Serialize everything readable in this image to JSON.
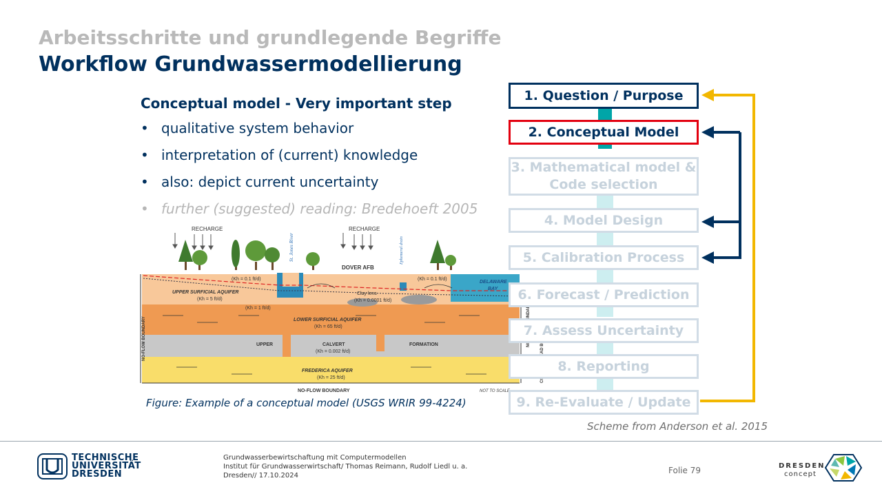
{
  "header": {
    "supertitle": "Arbeitsschritte und grundlegende Begriffe",
    "title": "Workflow Grundwassermodellierung"
  },
  "content": {
    "subheading": "Conceptual model - Very important step",
    "bullets": [
      "qualitative system behavior",
      "interpretation of (current) knowledge",
      "also: depict current uncertainty",
      "further (suggested) reading: Bredehoeft 2005"
    ]
  },
  "figure": {
    "caption": "Figure: Example of a conceptual model (USGS WRIR 99-4224)",
    "labels": {
      "recharge_left": "RECHARGE",
      "recharge_right": "RECHARGE",
      "st_jones_river": "St. Jones River",
      "ephemeral_drain": "Ephemeral drain",
      "dover_afb": "DOVER AFB",
      "delaware_bay": "DELAWARE",
      "delaware_bay2": "BAY",
      "kh1": "(Kh = 0.1 ft/d)",
      "kh2": "(Kh = 0.1 ft/d)",
      "upper_surficial": "UPPER SURFICIAL AQUIFER",
      "kh5": "(Kh = 5 ft/d)",
      "clay_lens": "Clay lens",
      "kh0001": "(Kh = 0.0001 ft/d)",
      "kh_1": "(Kh = 1 ft/d)",
      "lower_surficial": "LOWER SURFICIAL AQUIFER",
      "kh65": "(Kh = 65 ft/d)",
      "upper": "UPPER",
      "calvert": "CALVERT",
      "formation": "FORMATION",
      "kh0002": "(Kh = 0.002 ft/d)",
      "frederica": "FREDERICA      AQUIFER",
      "kh25": "(Kh = 25 ft/d)",
      "no_flow_bottom": "NO-FLOW BOUNDARY",
      "not_to_scale": "NOT TO SCALE",
      "no_flow_left": "NO-FLOW BOUNDARY",
      "no_flow_right": "NO-FLOW BOUNDARY",
      "constant_head": "CONSTANT-HEAD BOUNDARY"
    }
  },
  "workflow": {
    "steps": [
      {
        "label": "1. Question  / Purpose",
        "state": "active"
      },
      {
        "label": "2. Conceptual  Model",
        "state": "current"
      },
      {
        "label": "3. Mathematical model & Code selection",
        "state": "inactive"
      },
      {
        "label": "4. Model Design",
        "state": "inactive"
      },
      {
        "label": "5. Calibration Process",
        "state": "inactive"
      },
      {
        "label": "6. Forecast / Prediction",
        "state": "inactive"
      },
      {
        "label": "7. Assess  Uncertainty",
        "state": "inactive"
      },
      {
        "label": "8. Reporting",
        "state": "inactive"
      },
      {
        "label": "9. Re-Evaluate / Update",
        "state": "inactive"
      }
    ],
    "caption": "Scheme from Anderson et al. 2015",
    "colors": {
      "feedback_yellow": "#f2b700",
      "feedback_navy": "#00305e",
      "connector_teal": "#00a5a8",
      "active": "#00305e",
      "current": "#e3000f",
      "inactive": "#d1dce6"
    }
  },
  "footer": {
    "logo_left_lines": [
      "TECHNISCHE",
      "UNIVERSITÄT",
      "DRESDEN"
    ],
    "lines": [
      "Grundwasserbewirtschaftung mit Computermodellen",
      "Institut für Grundwasserwirtschaft/ Thomas Reimann, Rudolf Liedl u. a.",
      "Dresden// 17.10.2024"
    ],
    "folio": "Folie 79",
    "logo_right_main": "DRESDEN",
    "logo_right_sub": "concept"
  }
}
